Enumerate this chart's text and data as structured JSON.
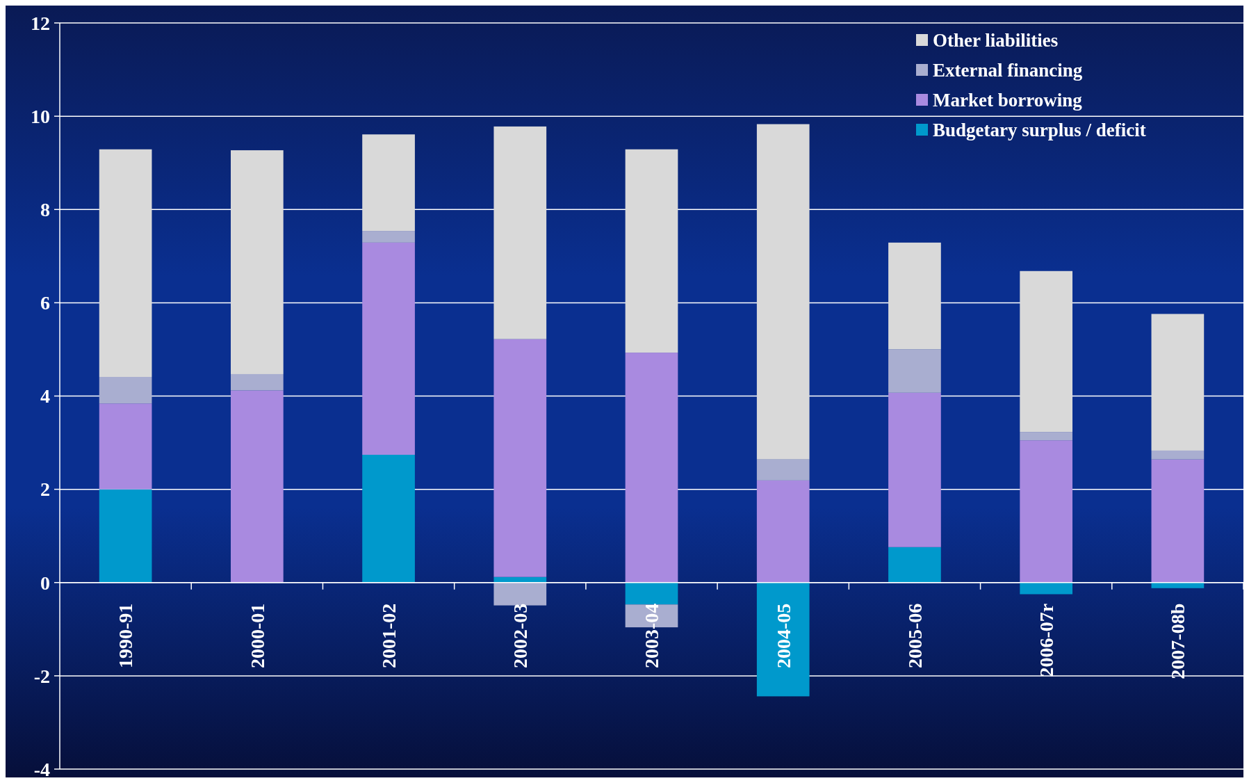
{
  "chart_data": {
    "type": "bar",
    "stacked": true,
    "categories": [
      "1990-91",
      "2000-01",
      "2001-02",
      "2002-03",
      "2003-04",
      "2004-05",
      "2005-06",
      "2006-07r",
      "2007-08b"
    ],
    "series": [
      {
        "name": "Budgetary surplus / deficit",
        "color": "#0099cc",
        "values": [
          2.0,
          null,
          2.74,
          0.12,
          -0.47,
          -2.44,
          0.76,
          -0.25,
          -0.12
        ]
      },
      {
        "name": "Market borrowing",
        "color": "#a98ae0",
        "values": [
          1.84,
          4.12,
          4.55,
          5.1,
          4.93,
          2.19,
          3.31,
          3.05,
          2.64
        ]
      },
      {
        "name": "External financing",
        "color": "#a9aed0",
        "values": [
          0.57,
          0.35,
          0.25,
          -0.49,
          -0.49,
          0.45,
          0.93,
          0.18,
          0.19
        ]
      },
      {
        "name": "Other liabilities",
        "color": "#d9d9d9",
        "values": [
          4.88,
          4.8,
          2.07,
          4.56,
          4.36,
          7.19,
          2.29,
          3.45,
          2.93
        ]
      }
    ],
    "ylim": [
      -4,
      12
    ],
    "yticks": [
      -4,
      -2,
      0,
      2,
      4,
      6,
      8,
      10,
      12
    ],
    "grid": "y",
    "legend": "top right"
  }
}
